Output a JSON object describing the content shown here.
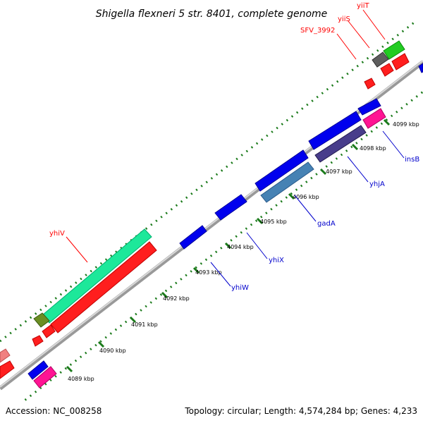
{
  "title": "Shigella flexneri 5 str. 8401, complete genome",
  "footer": {
    "accession": "Accession: NC_008258",
    "summary": "Topology: circular; Length: 4,574,284 bp; Genes: 4,233"
  },
  "colors": {
    "backbone": "#8c8c8c",
    "tick_dots": "#1a7a1a",
    "label_red": "#ff0000",
    "label_blue": "#0000cc"
  },
  "tick_labels": [
    "4089 kbp",
    "4090 kbp",
    "4091 kbp",
    "4092 kbp",
    "4093 kbp",
    "4094 kbp",
    "4095 kbp",
    "4096 kbp",
    "4097 kbp",
    "4098 kbp",
    "4099 kbp"
  ],
  "gene_labels": [
    {
      "name": "yiiT",
      "color": "red"
    },
    {
      "name": "yiiS",
      "color": "red"
    },
    {
      "name": "SFV_3992",
      "color": "red"
    },
    {
      "name": "yhiV",
      "color": "red"
    },
    {
      "name": "insB",
      "color": "blue"
    },
    {
      "name": "yhjA",
      "color": "blue"
    },
    {
      "name": "gadA",
      "color": "blue"
    },
    {
      "name": "yhiX",
      "color": "blue"
    },
    {
      "name": "yhiW",
      "color": "blue"
    }
  ],
  "features": [
    {
      "name": "yhiV",
      "color": "#00ff99"
    },
    {
      "name": "yhiV-strand",
      "color": "#ff0000"
    },
    {
      "name": "gadA",
      "color": "#4682b4"
    },
    {
      "name": "yhjA",
      "color": "#483d8b"
    },
    {
      "name": "insB",
      "color": "#ff1493"
    },
    {
      "name": "yhiX",
      "color": "#0000ff"
    },
    {
      "name": "yhiW",
      "color": "#0000ff"
    },
    {
      "name": "yiiT",
      "color": "#00cc00"
    },
    {
      "name": "yiiS",
      "color": "#ff0000"
    },
    {
      "name": "SFV_3992",
      "color": "#ff0000"
    },
    {
      "name": "unknown-gray",
      "color": "#606060"
    },
    {
      "name": "unknown-olive",
      "color": "#6b8e23"
    },
    {
      "name": "unknown-salmon",
      "color": "#f08080"
    }
  ]
}
